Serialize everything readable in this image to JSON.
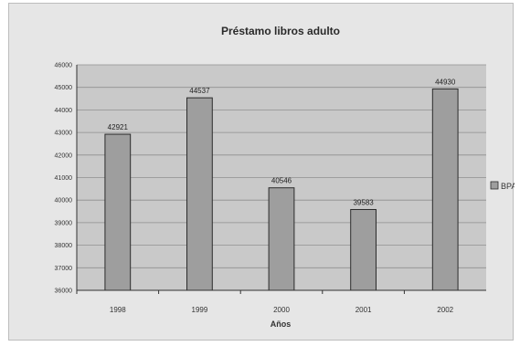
{
  "chart_data": {
    "type": "bar",
    "title": "Préstamo libros adulto",
    "xlabel": "Años",
    "ylabel": "",
    "categories": [
      "1998",
      "1999",
      "2000",
      "2001",
      "2002"
    ],
    "series": [
      {
        "name": "BPA",
        "values": [
          42921,
          44537,
          40546,
          39583,
          44930
        ]
      }
    ],
    "data_labels": [
      "42921",
      "44537",
      "40546",
      "39583",
      "44930"
    ],
    "ylim": [
      36000,
      46000
    ],
    "y_ticks": [
      36000,
      37000,
      38000,
      39000,
      40000,
      41000,
      42000,
      43000,
      44000,
      45000,
      46000
    ],
    "y_tick_labels": [
      "36000",
      "37000",
      "38000",
      "39000",
      "40000",
      "41000",
      "42000",
      "43000",
      "44000",
      "45000",
      "46000"
    ],
    "grid": true,
    "legend_position": "right",
    "colors": {
      "bar": "#9e9e9e",
      "bar_edge": "#2b2b2b",
      "plot_background": "#c9c9c9",
      "chart_background": "#e6e6e6",
      "gridline": "#8f8f8f"
    }
  }
}
